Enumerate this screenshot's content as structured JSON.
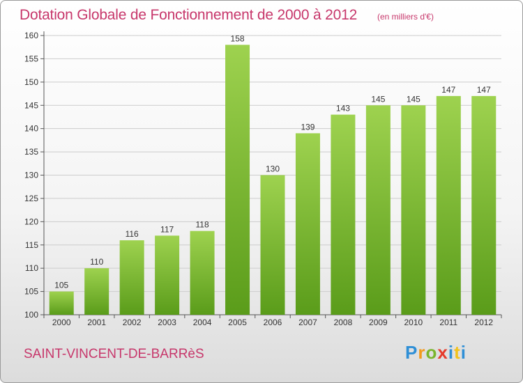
{
  "header": {
    "title": "Dotation Globale de Fonctionnement de 2000 à 2012",
    "unit": "(en milliers d'€)"
  },
  "footer": {
    "commune": "SAINT-VINCENT-DE-BARRèS",
    "logo_text": "Proxiti"
  },
  "colors": {
    "title": "#c7376b",
    "bar_top": "#9ed24f",
    "bar_bottom": "#5a9c1a",
    "grid": "#cccccc"
  },
  "chart_data": {
    "type": "bar",
    "categories": [
      "2000",
      "2001",
      "2002",
      "2003",
      "2004",
      "2005",
      "2006",
      "2007",
      "2008",
      "2009",
      "2010",
      "2011",
      "2012"
    ],
    "values": [
      105,
      110,
      116,
      117,
      118,
      158,
      130,
      139,
      143,
      145,
      145,
      147,
      147
    ],
    "title": "Dotation Globale de Fonctionnement de 2000 à 2012",
    "xlabel": "",
    "ylabel": "",
    "ylim": [
      100,
      160
    ],
    "yticks": [
      100,
      105,
      110,
      115,
      120,
      125,
      130,
      135,
      140,
      145,
      150,
      155,
      160
    ],
    "data_labels": true,
    "grid": true
  }
}
